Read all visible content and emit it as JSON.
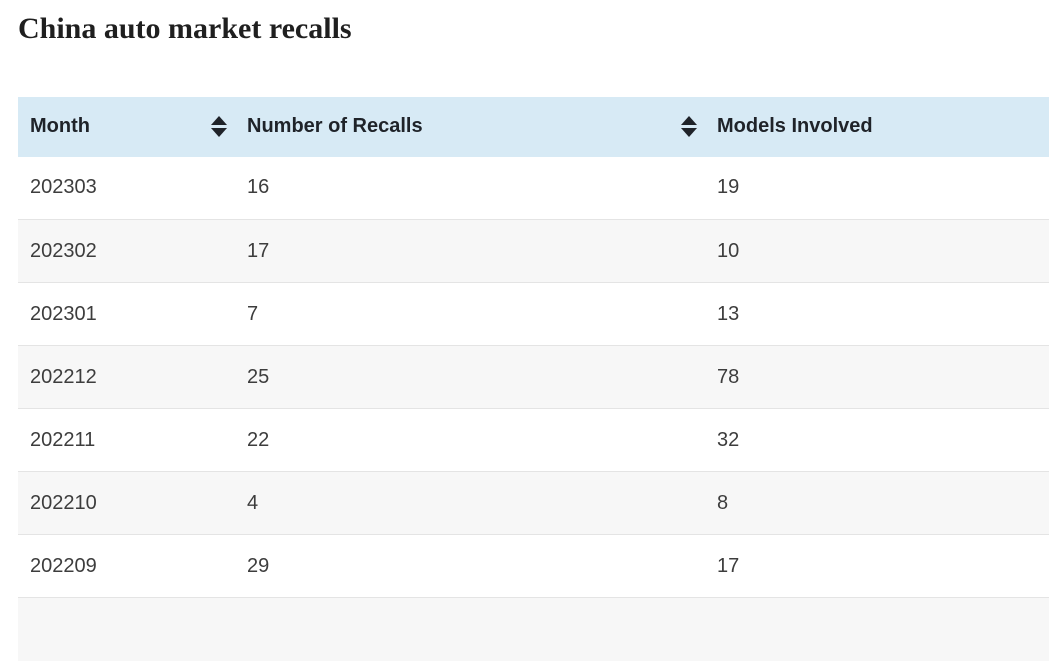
{
  "page": {
    "title": "China auto market recalls"
  },
  "table": {
    "columns": [
      {
        "label": "Month",
        "sortable": true
      },
      {
        "label": "Number of Recalls",
        "sortable": true
      },
      {
        "label": "Models Involved",
        "sortable": true
      }
    ],
    "rows": [
      {
        "month": "202303",
        "recalls": "16",
        "models": "19"
      },
      {
        "month": "202302",
        "recalls": "17",
        "models": "10"
      },
      {
        "month": "202301",
        "recalls": "7",
        "models": "13"
      },
      {
        "month": "202212",
        "recalls": "25",
        "models": "78"
      },
      {
        "month": "202211",
        "recalls": "22",
        "models": "32"
      },
      {
        "month": "202210",
        "recalls": "4",
        "models": "8"
      },
      {
        "month": "202209",
        "recalls": "29",
        "models": "17"
      }
    ],
    "has_partial_next_row": true
  },
  "icons": {
    "sort_indicator": "up-down-filled-triangles"
  },
  "colors": {
    "header_bg": "#d7eaf5",
    "row_alt_bg": "#f7f7f7",
    "row_border": "#e4e4e4",
    "header_text": "#1f2329",
    "cell_text": "#3d3d3d",
    "title_text": "#1f1f1f"
  }
}
